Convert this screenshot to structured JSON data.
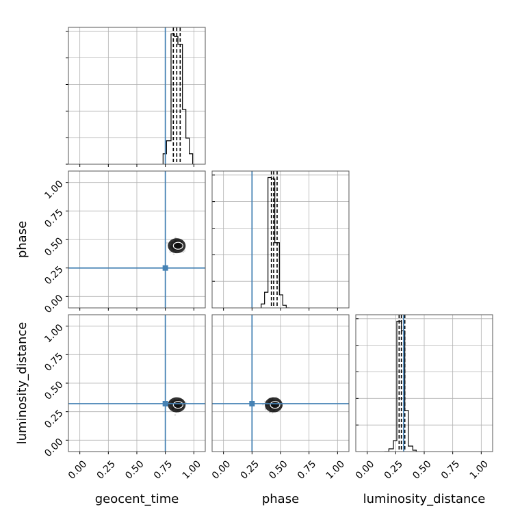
{
  "chart_data": {
    "type": "corner",
    "parameters": [
      "geocent_time",
      "phase",
      "luminosity_distance"
    ],
    "axis_range": [
      -0.1,
      1.1
    ],
    "ticks": [
      0,
      0.25,
      0.5,
      0.75,
      1.0
    ],
    "tick_labels": [
      "0.00",
      "0.25",
      "0.50",
      "0.75",
      "1.00"
    ],
    "xlabels": [
      "geocent_time",
      "phase",
      "luminosity_distance"
    ],
    "ylabels": [
      "",
      "phase",
      "luminosity_distance"
    ],
    "grid": true,
    "truths": [
      0.75,
      0.25,
      0.32
    ],
    "truth_color": "#4682b4",
    "quantile_lines": [
      [
        0.82,
        0.85,
        0.88
      ],
      [
        0.42,
        0.44,
        0.47
      ],
      [
        0.28,
        0.3,
        0.33
      ]
    ],
    "histograms": [
      {
        "edges": [
          0.73,
          0.76,
          0.8,
          0.83,
          0.86,
          0.9,
          0.93,
          0.96,
          0.99
        ],
        "counts": [
          0.08,
          0.18,
          1.0,
          0.98,
          0.92,
          0.42,
          0.2,
          0.08
        ]
      },
      {
        "edges": [
          0.33,
          0.36,
          0.39,
          0.42,
          0.45,
          0.49,
          0.52,
          0.55,
          0.58
        ],
        "counts": [
          0.03,
          0.12,
          1.0,
          0.99,
          0.5,
          0.1,
          0.02,
          0.0
        ]
      },
      {
        "edges": [
          0.15,
          0.19,
          0.23,
          0.26,
          0.3,
          0.33,
          0.36,
          0.4,
          0.43
        ],
        "counts": [
          0.0,
          0.02,
          0.08,
          0.95,
          0.88,
          0.3,
          0.04,
          0.01
        ]
      }
    ],
    "scatter_centers": [
      {
        "x": "geocent_time",
        "y": "phase",
        "cx": 0.85,
        "cy": 0.445
      },
      {
        "x": "geocent_time",
        "y": "luminosity_distance",
        "cx": 0.85,
        "cy": 0.31
      },
      {
        "x": "phase",
        "y": "luminosity_distance",
        "cx": 0.44,
        "cy": 0.31
      }
    ]
  }
}
